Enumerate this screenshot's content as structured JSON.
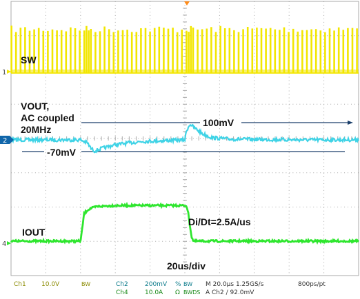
{
  "colors": {
    "ch1": "#f2e600",
    "ch2": "#3fd3e6",
    "ch4": "#2ee62e",
    "grid": "#a8a8a8",
    "annotation_line": "#1a3e6a",
    "trigger_marker": "#ff8c1a"
  },
  "labels": {
    "sw": "SW",
    "vout_line1": "VOUT,",
    "vout_line2": "AC coupled",
    "vout_line3": "20MHz",
    "iout": "IOUT",
    "pos_ann": "100mV",
    "neg_ann": "-70mV",
    "didt": "Di/Dt=2.5A/us",
    "timebase": "20us/div"
  },
  "markers": {
    "ch1": "1",
    "ch2": "2",
    "ch4": "4"
  },
  "status": {
    "ch1_name": "Ch1",
    "ch1_scale": "10.0V",
    "ch1_bw": "BW",
    "ch2_name": "Ch2",
    "ch2_scale": "200mV",
    "ch2_coupling": "%",
    "ch2_bw": "BW",
    "ch4_name": "Ch4",
    "ch4_scale": "10.0A",
    "ch4_unit": "Ω",
    "ch4_bw": "BWDS",
    "horizontal": "M 20.0µs 1.25GS/s",
    "record": "800ps/pt",
    "trigger": "A Ch2 ∕ 92.0mV"
  },
  "chart_data": {
    "type": "line",
    "x_unit": "µs",
    "x_range": [
      0,
      200
    ],
    "series": [
      {
        "name": "SW",
        "description_kind": "switching",
        "x": [
          0,
          20,
          40,
          60,
          80,
          100,
          120,
          140,
          160,
          180,
          200
        ],
        "values": [
          1,
          1,
          1,
          1,
          1,
          1,
          1,
          1,
          1,
          1,
          1
        ]
      },
      {
        "name": "VOUT, AC coupled 20MHz",
        "unit": "mV",
        "x": [
          0,
          40,
          44,
          46,
          48,
          52,
          60,
          75,
          95,
          100,
          101,
          103,
          105,
          110,
          115,
          125,
          145,
          170,
          200
        ],
        "values": [
          0,
          0,
          -20,
          -55,
          -70,
          -55,
          -30,
          -10,
          -2,
          0,
          60,
          100,
          80,
          40,
          15,
          5,
          2,
          0,
          0
        ]
      },
      {
        "name": "IOUT",
        "unit": "A",
        "x": [
          0,
          40,
          41,
          42,
          44,
          46,
          50,
          60,
          80,
          100,
          101,
          102,
          103,
          104,
          105,
          200
        ],
        "values": [
          0,
          0,
          7,
          15,
          17,
          18,
          19,
          19.5,
          19.5,
          19.5,
          19.5,
          15,
          8,
          2,
          0,
          0
        ]
      }
    ]
  }
}
